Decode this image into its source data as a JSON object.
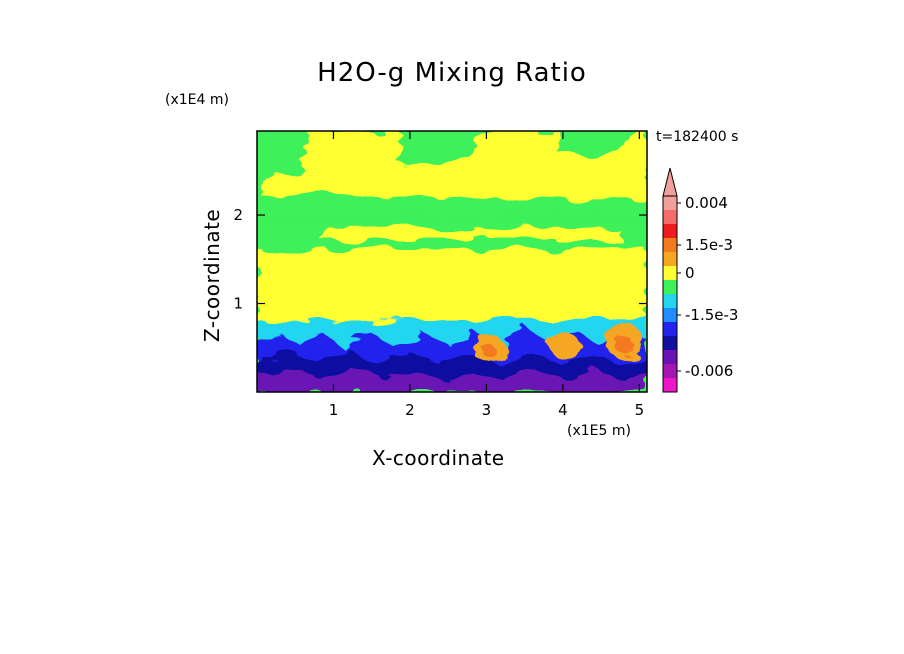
{
  "chart_data": {
    "type": "heatmap",
    "title": "H2O-g Mixing Ratio",
    "xlabel": "X-coordinate",
    "ylabel": "Z-coordinate",
    "x_multiplier": "(x1E5 m)",
    "y_multiplier": "(x1E4 m)",
    "time_label": "t=182400 s",
    "x_ticks": [
      "1",
      "2",
      "3",
      "4",
      "5"
    ],
    "y_ticks": [
      "1",
      "2"
    ],
    "xlim": [
      0,
      5.1
    ],
    "ylim": [
      0,
      2.95
    ],
    "colorbar": {
      "levels": [
        {
          "value": "0.004",
          "color": "#f3a09c"
        },
        {
          "value": "",
          "color": "#f56a6a"
        },
        {
          "value": "",
          "color": "#ee1c1c"
        },
        {
          "value": "1.5e-3",
          "color": "#f47a20"
        },
        {
          "value": "",
          "color": "#f5a623"
        },
        {
          "value": "0",
          "color": "#ffff33"
        },
        {
          "value": "",
          "color": "#3ef05a"
        },
        {
          "value": "",
          "color": "#22d6f0"
        },
        {
          "value": "-1.5e-3",
          "color": "#1f8cff"
        },
        {
          "value": "",
          "color": "#2323ee"
        },
        {
          "value": "",
          "color": "#1010a0"
        },
        {
          "value": "",
          "color": "#6a12b5"
        },
        {
          "value": "-0.006",
          "color": "#a316b0"
        },
        {
          "value": "",
          "color": "#ef15c8"
        }
      ],
      "tick_labels": [
        "0.004",
        "1.5e-3",
        "0",
        "-1.5e-3",
        "-0.006"
      ]
    },
    "regions": {
      "upper_layer": "green and yellow horizontal bands, z from 1.0 to 2.95",
      "mid_layer": "cyan band near z 0.7-0.8",
      "lower_layer": "blue and purple turbulent structures near the ground with orange/red cells near x 3.0, 4.0, 4.8"
    }
  }
}
